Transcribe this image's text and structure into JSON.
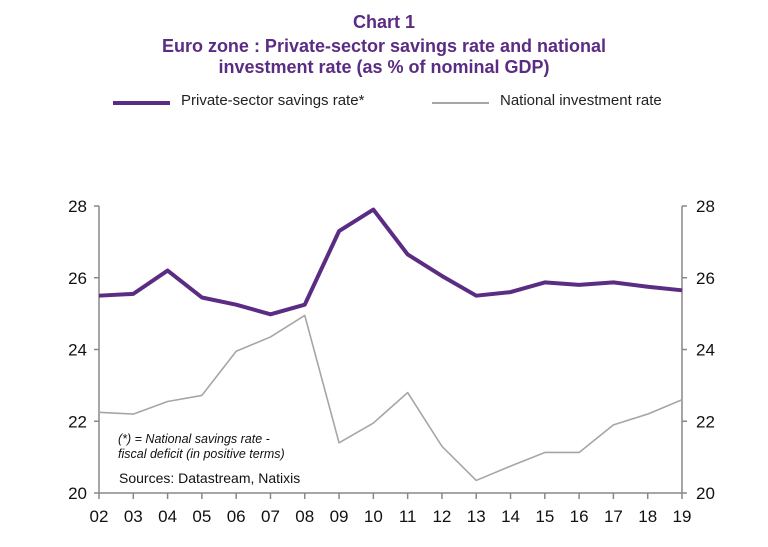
{
  "chart_data": {
    "type": "line",
    "title": "Chart 1",
    "subtitle": [
      "Euro zone : Private-sector savings rate and national",
      "investment rate (as % of nominal GDP)"
    ],
    "categories": [
      "02",
      "03",
      "04",
      "05",
      "06",
      "07",
      "08",
      "09",
      "10",
      "11",
      "12",
      "13",
      "14",
      "15",
      "16",
      "17",
      "18",
      "19"
    ],
    "series": [
      {
        "name": "Private-sector savings rate*",
        "color": "#5b2c83",
        "values": [
          25.5,
          25.55,
          26.2,
          25.45,
          25.25,
          24.98,
          25.25,
          27.3,
          27.9,
          26.65,
          26.05,
          25.5,
          25.6,
          25.87,
          25.8,
          25.87,
          25.75,
          25.65
        ]
      },
      {
        "name": "National investment rate",
        "color": "#a6a6a6",
        "values": [
          22.25,
          22.2,
          22.55,
          22.72,
          23.95,
          24.35,
          24.95,
          21.4,
          21.95,
          22.8,
          21.3,
          20.35,
          20.75,
          21.13,
          21.13,
          21.9,
          22.2,
          22.6
        ]
      }
    ],
    "ylim": [
      20,
      28
    ],
    "yticks": [
      "20",
      "22",
      "24",
      "26",
      "28"
    ],
    "y2ticks": [
      "20",
      "22",
      "24",
      "26",
      "28"
    ],
    "grid": false,
    "legend": "top",
    "note": [
      "(*) = National savings rate -",
      "fiscal deficit (in positive terms)"
    ],
    "source": "Sources:  Datastream,  Natixis"
  }
}
